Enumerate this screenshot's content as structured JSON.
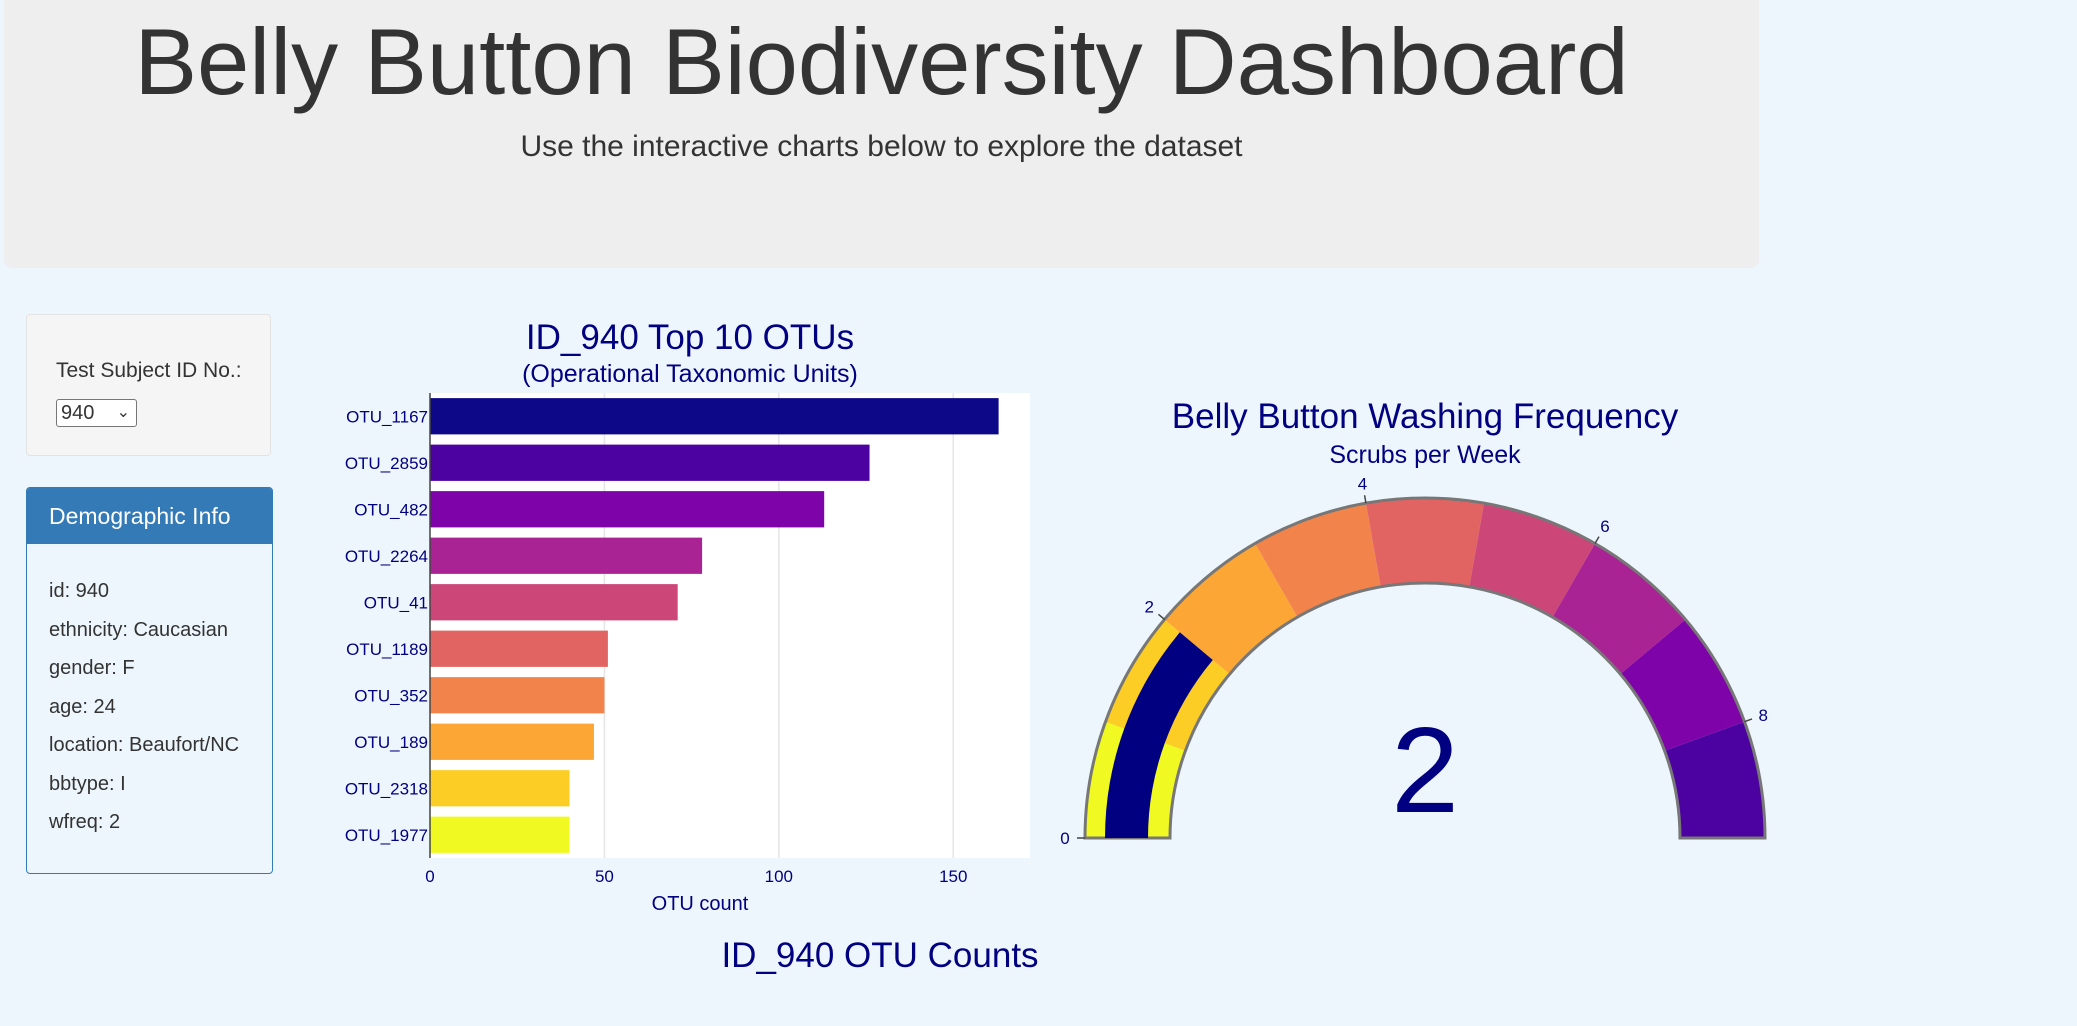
{
  "header": {
    "title": "Belly Button Biodiversity Dashboard",
    "subtitle": "Use the interactive charts below to explore the dataset"
  },
  "selector": {
    "label": "Test Subject ID No.:",
    "selected": "940"
  },
  "demographics": {
    "heading": "Demographic Info",
    "items": [
      "id: 940",
      "ethnicity: Caucasian",
      "gender: F",
      "age: 24",
      "location: Beaufort/NC",
      "bbtype: I",
      "wfreq: 2"
    ]
  },
  "bar_chart_header": {
    "title": "ID_940 Top 10 OTUs",
    "subtitle": "(Operational Taxonomic Units)"
  },
  "gauge_header": {
    "title": "Belly Button Washing Frequency",
    "subtitle": "Scrubs per Week"
  },
  "bubble_title": "ID_940 OTU Counts",
  "colors": {
    "title_color": "#000080",
    "panel_heading": "#337ab7",
    "gauge_bar": "#000080"
  },
  "chart_data": [
    {
      "type": "bar",
      "orientation": "horizontal",
      "title": "ID_940 Top 10 OTUs",
      "subtitle": "(Operational Taxonomic Units)",
      "xlabel": "OTU count",
      "categories": [
        "OTU_1167",
        "OTU_2859",
        "OTU_482",
        "OTU_2264",
        "OTU_41",
        "OTU_1189",
        "OTU_352",
        "OTU_189",
        "OTU_2318",
        "OTU_1977"
      ],
      "values": [
        163,
        126,
        113,
        78,
        71,
        51,
        50,
        47,
        40,
        40
      ],
      "bar_colors": [
        "#0d0887",
        "#4c02a1",
        "#7e03a8",
        "#a92395",
        "#cc4778",
        "#e16462",
        "#f2844b",
        "#fca636",
        "#fcce25",
        "#f0f921"
      ],
      "xlim": [
        0,
        172
      ],
      "xticks": [
        0,
        50,
        100,
        150
      ],
      "grid": true
    },
    {
      "type": "gauge",
      "title": "Belly Button Washing Frequency",
      "subtitle": "Scrubs per Week",
      "value": 2,
      "range": [
        0,
        9
      ],
      "ticks": [
        0,
        2,
        4,
        6,
        8
      ],
      "step_colors": [
        "#f0f921",
        "#fcce25",
        "#fca636",
        "#f2844b",
        "#e16462",
        "#cc4778",
        "#a92395",
        "#7e03a8",
        "#4c02a1"
      ],
      "bar_color": "#000080"
    }
  ]
}
